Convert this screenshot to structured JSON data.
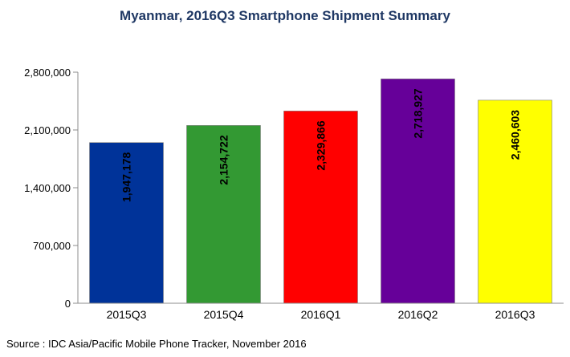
{
  "chart_data": {
    "type": "bar",
    "title": "Myanmar, 2016Q3 Smartphone Shipment Summary",
    "categories": [
      "2015Q3",
      "2015Q4",
      "2016Q1",
      "2016Q2",
      "2016Q3"
    ],
    "values": [
      1947178,
      2154722,
      2329866,
      2718927,
      2460603
    ],
    "value_labels": [
      "1,947,178",
      "2,154,722",
      "2,329,866",
      "2,718,927",
      "2,460,603"
    ],
    "bar_colors": [
      "#003399",
      "#339933",
      "#ff0000",
      "#660099",
      "#ffff00"
    ],
    "ylim": [
      0,
      2800000
    ],
    "yticks": [
      0,
      700000,
      1400000,
      2100000,
      2800000
    ],
    "ytick_labels": [
      "0",
      "700,000",
      "1,400,000",
      "2,100,000",
      "2,800,000"
    ],
    "grid": false,
    "legend": "none",
    "xlabel": "",
    "ylabel": ""
  },
  "footer": {
    "source": "Source : IDC Asia/Pacific Mobile Phone Tracker, November 2016"
  }
}
